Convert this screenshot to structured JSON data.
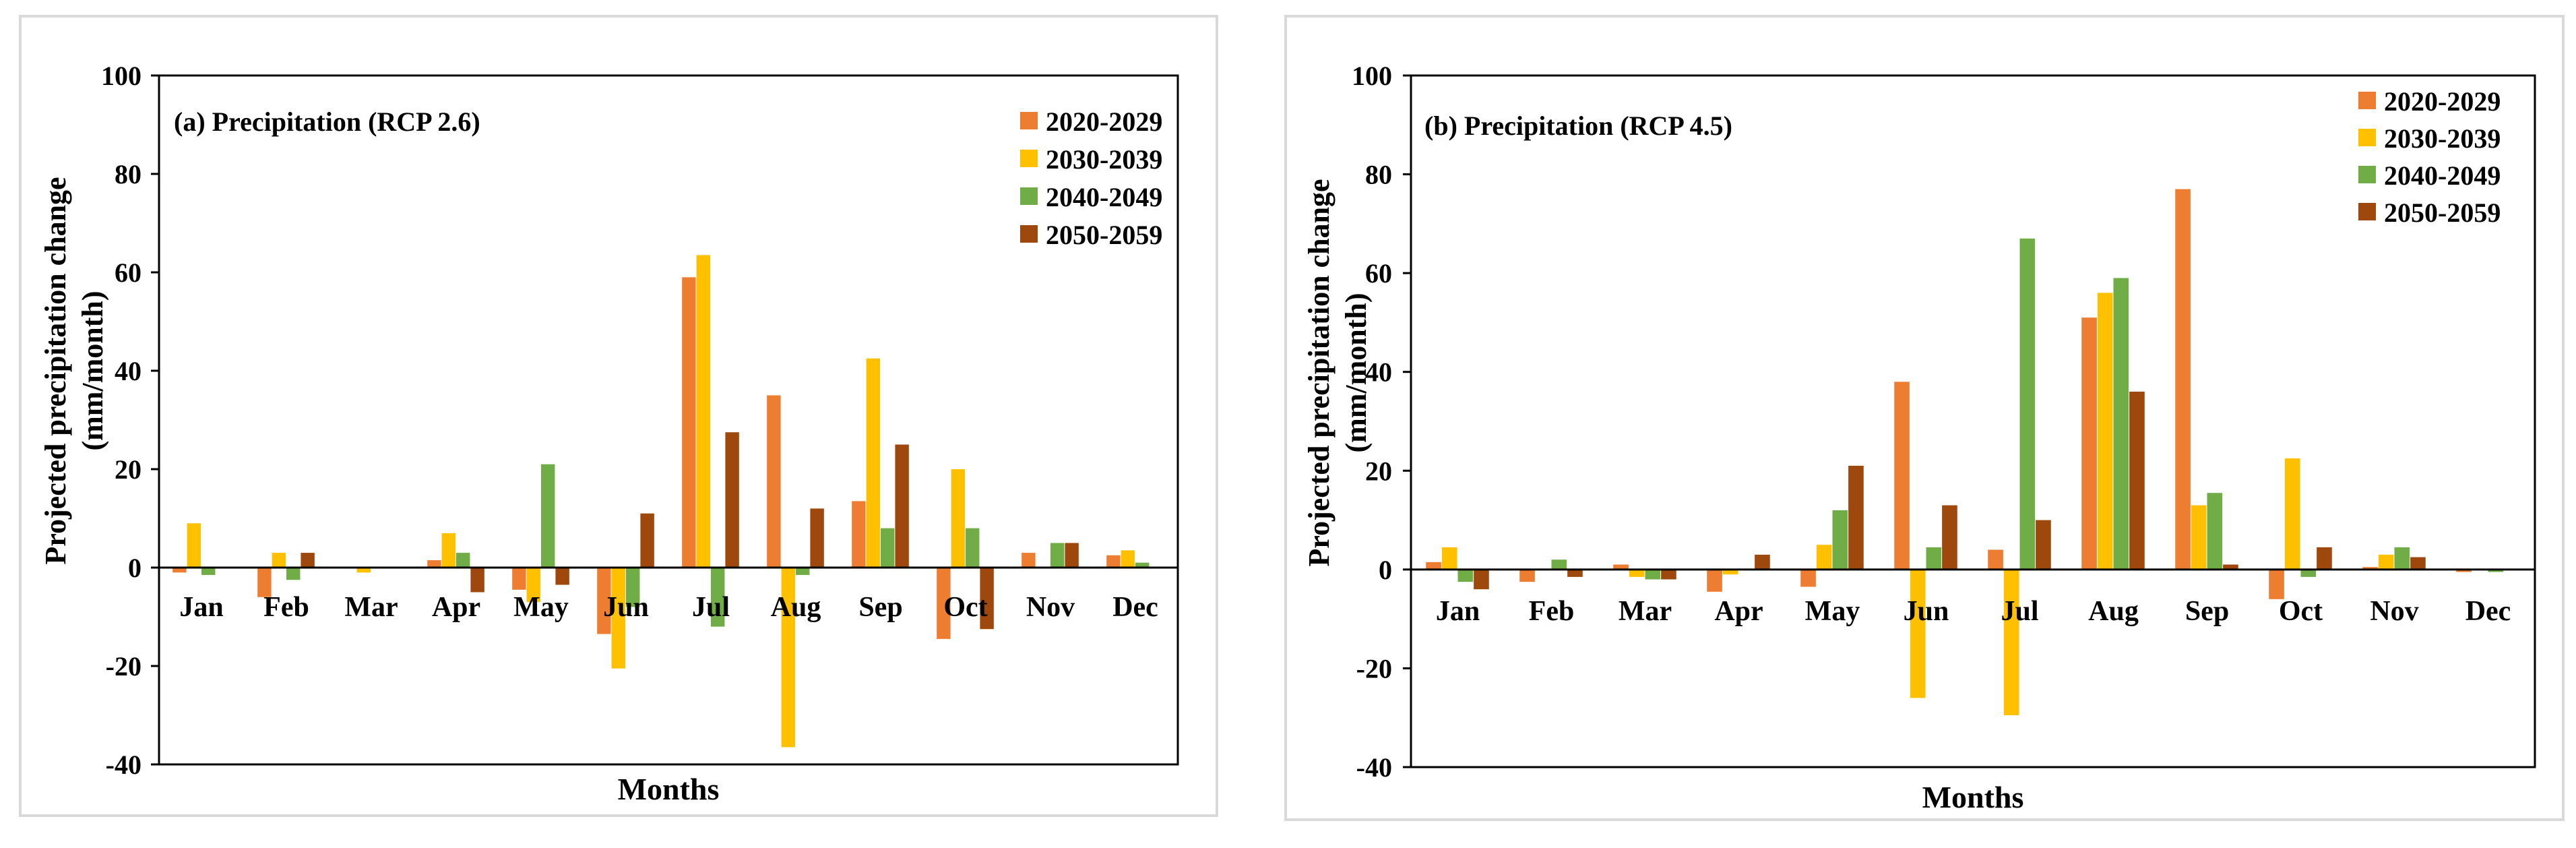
{
  "chart_data": [
    {
      "type": "bar",
      "title": "(a) Precipitation (RCP 2.6)",
      "xlabel": "Months",
      "ylabel": "Projected precipitation change (mm/month)",
      "ylabel_lines": [
        "Projected precipitation change",
        "(mm/month)"
      ],
      "ylim": [
        -40,
        100
      ],
      "yticks": [
        -40,
        -20,
        0,
        20,
        40,
        60,
        80,
        100
      ],
      "legend_position": "top-right",
      "categories": [
        "Jan",
        "Feb",
        "Mar",
        "Apr",
        "May",
        "Jun",
        "Jul",
        "Aug",
        "Sep",
        "Oct",
        "Nov",
        "Dec"
      ],
      "series": [
        {
          "name": "2020-2029",
          "color": "#ED7D31",
          "values": [
            -1,
            -6,
            0,
            1.5,
            -4.5,
            -13.5,
            59,
            35,
            13.5,
            -14.5,
            3,
            2.5
          ]
        },
        {
          "name": "2030-2039",
          "color": "#FFC000",
          "values": [
            9,
            3,
            -1,
            7,
            -7,
            -20.5,
            63.5,
            -36.5,
            42.5,
            20,
            0,
            3.5
          ]
        },
        {
          "name": "2040-2049",
          "color": "#70AD47",
          "values": [
            -1.5,
            -2.5,
            0,
            3,
            21,
            -8,
            -12,
            -1.5,
            8,
            8,
            5,
            1
          ]
        },
        {
          "name": "2050-2059",
          "color": "#9E480E",
          "values": [
            0,
            3,
            0,
            -5,
            -3.5,
            11,
            27.5,
            12,
            25,
            -12.5,
            5,
            0
          ]
        }
      ]
    },
    {
      "type": "bar",
      "title": "(b) Precipitation (RCP 4.5)",
      "xlabel": "Months",
      "ylabel": "Projected precipitation change (mm/month)",
      "ylabel_lines": [
        "Projected precipitation change",
        "(mm/month)"
      ],
      "ylim": [
        -40,
        100
      ],
      "yticks": [
        -40,
        -20,
        0,
        20,
        40,
        60,
        80,
        100
      ],
      "legend_position": "top-right",
      "categories": [
        "Jan",
        "Feb",
        "Mar",
        "Apr",
        "May",
        "Jun",
        "Jul",
        "Aug",
        "Sep",
        "Oct",
        "Nov",
        "Dec"
      ],
      "series": [
        {
          "name": "2020-2029",
          "color": "#ED7D31",
          "values": [
            1.5,
            -2.5,
            1,
            -4.5,
            -3.5,
            38,
            4,
            51,
            77,
            -6,
            0.5,
            -0.5
          ]
        },
        {
          "name": "2030-2039",
          "color": "#FFC000",
          "values": [
            4.5,
            0,
            -1.5,
            -1,
            5,
            -26,
            -29.5,
            56,
            13,
            22.5,
            3,
            0
          ]
        },
        {
          "name": "2040-2049",
          "color": "#70AD47",
          "values": [
            -2.5,
            2,
            -2,
            0,
            12,
            4.5,
            67,
            59,
            15.5,
            -1.5,
            4.5,
            -0.5
          ]
        },
        {
          "name": "2050-2059",
          "color": "#9E480E",
          "values": [
            -4,
            -1.5,
            -2,
            3,
            21,
            13,
            10,
            36,
            1,
            4.5,
            2.5,
            0
          ]
        }
      ]
    }
  ]
}
